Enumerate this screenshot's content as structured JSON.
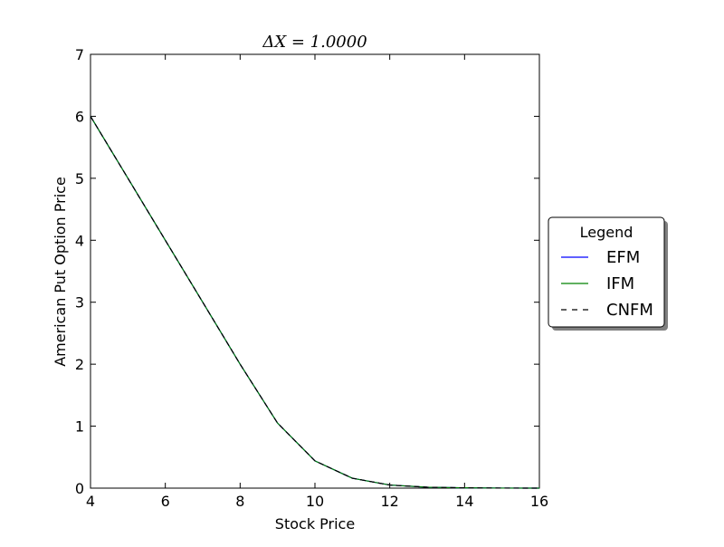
{
  "chart_data": {
    "type": "line",
    "title": "ΔX = 1.0000",
    "xlabel": "Stock Price",
    "ylabel": "American Put Option Price",
    "xlim": [
      4,
      16
    ],
    "ylim": [
      0,
      7
    ],
    "xticks": [
      4,
      6,
      8,
      10,
      12,
      14,
      16
    ],
    "yticks": [
      0,
      1,
      2,
      3,
      4,
      5,
      6,
      7
    ],
    "grid": false,
    "legend": {
      "title": "Legend",
      "placement": "outside-right"
    },
    "x": [
      4,
      5,
      6,
      7,
      8,
      9,
      10,
      11,
      12,
      13,
      14,
      15,
      16
    ],
    "series": [
      {
        "name": "EFM",
        "color": "#0000ff",
        "style": "solid",
        "values": [
          6.0,
          5.0,
          4.0,
          3.0,
          2.0,
          1.05,
          0.44,
          0.16,
          0.05,
          0.015,
          0.005,
          0.001,
          0.0
        ]
      },
      {
        "name": "IFM",
        "color": "#008000",
        "style": "solid",
        "values": [
          6.0,
          5.0,
          4.0,
          3.0,
          2.0,
          1.05,
          0.44,
          0.16,
          0.05,
          0.015,
          0.005,
          0.001,
          0.0
        ]
      },
      {
        "name": "CNFM",
        "color": "#000000",
        "style": "dashed",
        "values": [
          6.0,
          5.0,
          4.0,
          3.0,
          2.0,
          1.05,
          0.44,
          0.16,
          0.05,
          0.015,
          0.005,
          0.001,
          0.0
        ]
      }
    ]
  }
}
